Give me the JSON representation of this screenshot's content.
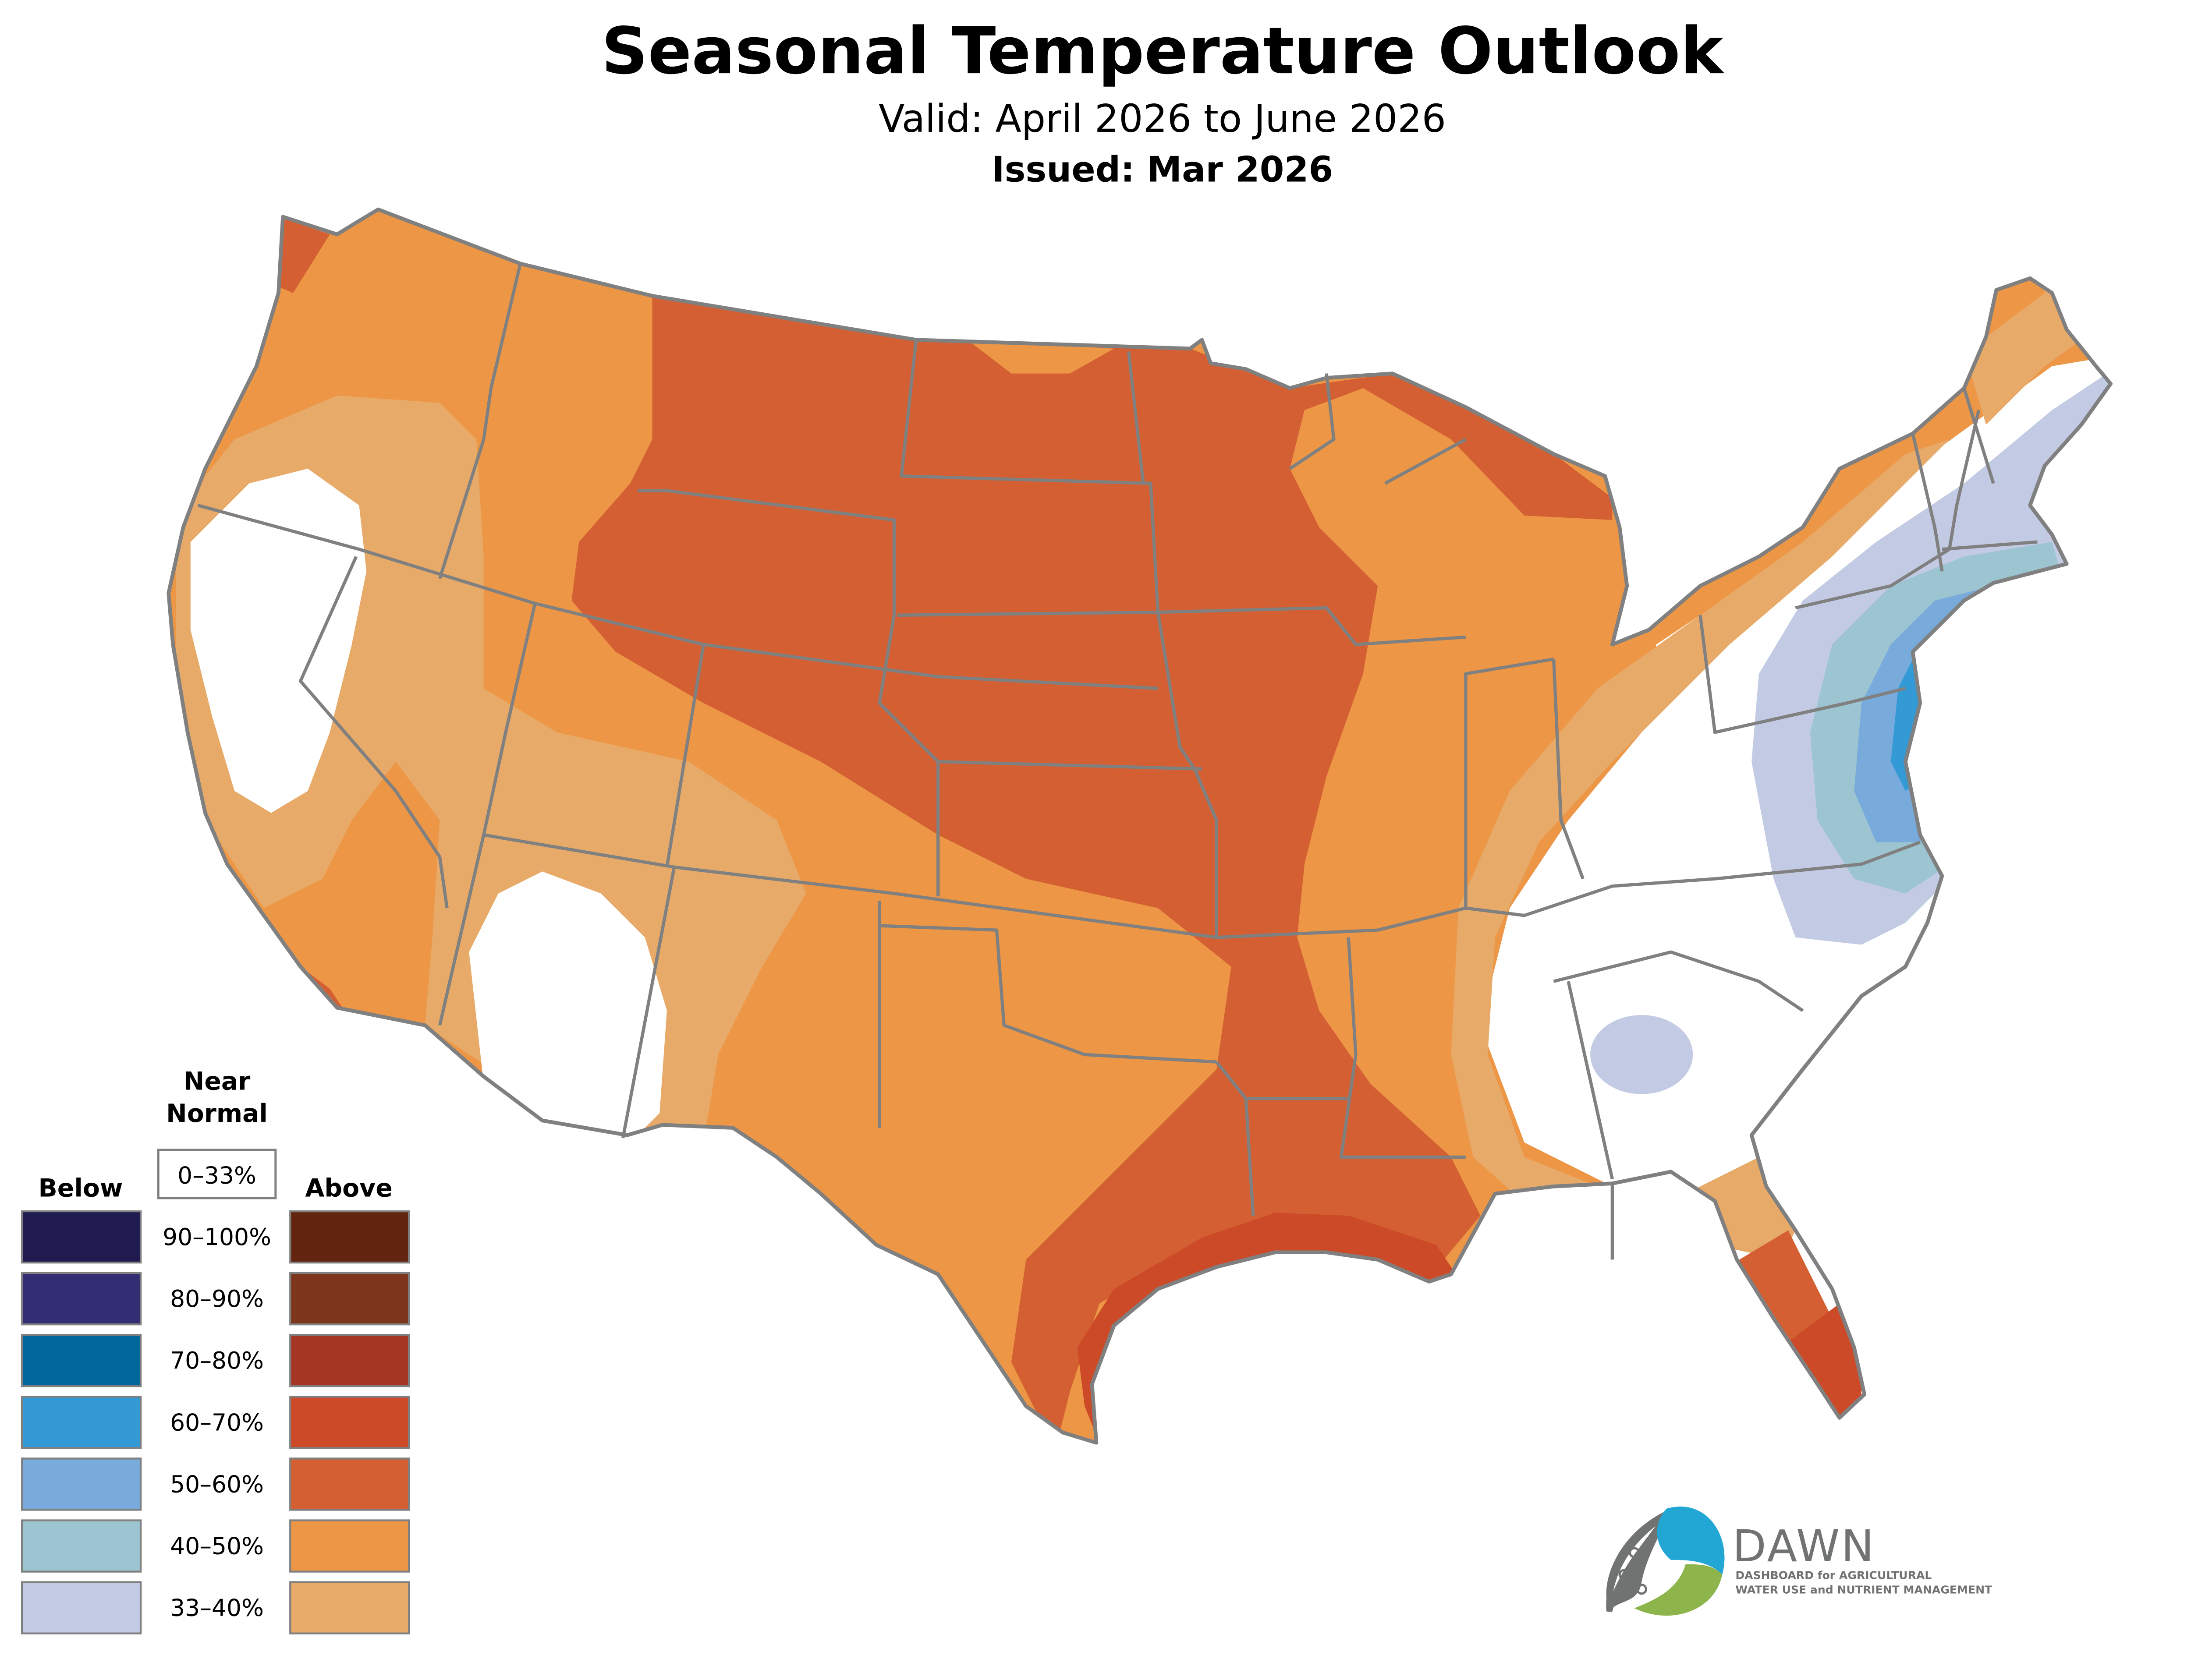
{
  "header": {
    "title": "Seasonal Temperature Outlook",
    "valid": "Valid: April 2026 to June 2026",
    "issued": "Issued: Mar 2026"
  },
  "legend": {
    "near_normal_title_line1": "Near",
    "near_normal_title_line2": "Normal",
    "near_normal_range": "0–33%",
    "below_title": "Below",
    "above_title": "Above",
    "rows": [
      {
        "label": "90–100%",
        "below_color": "#1f1a50",
        "above_color": "#632410"
      },
      {
        "label": "80–90%",
        "below_color": "#332d73",
        "above_color": "#7d351c"
      },
      {
        "label": "70–80%",
        "below_color": "#00679c",
        "above_color": "#a63725"
      },
      {
        "label": "60–70%",
        "below_color": "#339ad5",
        "above_color": "#cc4a27"
      },
      {
        "label": "50–60%",
        "below_color": "#78aadb",
        "above_color": "#d35f32"
      },
      {
        "label": "40–50%",
        "below_color": "#9cc4d1",
        "above_color": "#ec9646"
      },
      {
        "label": "33–40%",
        "below_color": "#c3cbe4",
        "above_color": "#e8aa68"
      }
    ]
  },
  "map": {
    "region": "Contiguous United States",
    "categories": [
      {
        "name": "Above 50–60%",
        "color": "#d35f32"
      },
      {
        "name": "Above 60–70%",
        "color": "#cc4a27"
      },
      {
        "name": "Above 40–50%",
        "color": "#ec9646"
      },
      {
        "name": "Above 33–40%",
        "color": "#e8aa68"
      },
      {
        "name": "Near Normal",
        "color": "#ffffff"
      },
      {
        "name": "Below 33–40%",
        "color": "#c3cbe4"
      },
      {
        "name": "Below 40–50%",
        "color": "#9cc4d1"
      },
      {
        "name": "Below 50–60%",
        "color": "#78aadb"
      },
      {
        "name": "Below 60–70%",
        "color": "#339ad5"
      }
    ],
    "border_color": "#808080"
  },
  "logo": {
    "name": "DAWN",
    "tagline_line1": "DASHBOARD for AGRICULTURAL",
    "tagline_line2": "WATER USE and NUTRIENT MANAGEMENT",
    "blue": "#22a6d4",
    "green": "#8db54b",
    "gray": "#707372"
  }
}
